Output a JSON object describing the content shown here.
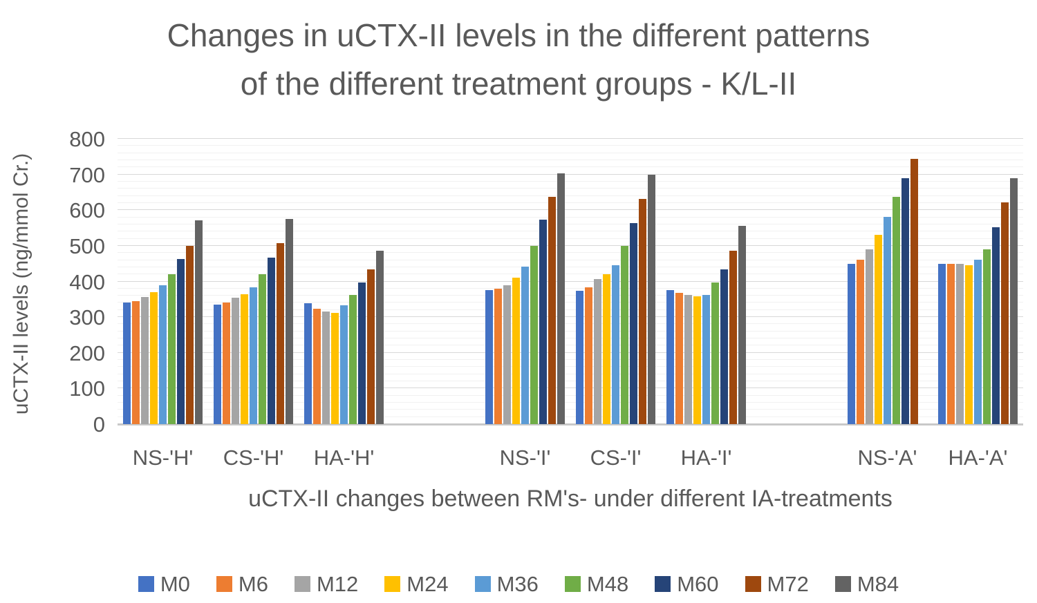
{
  "title_lines": {
    "line1": "Changes in uCTX-II levels in the different patterns",
    "line2": "of the different treatment groups - K/L-II"
  },
  "chart_data": {
    "type": "bar",
    "title": "Changes in uCTX-II levels in the different patterns of the different treatment groups - K/L-II",
    "xlabel": "uCTX-II changes between RM's- under different IA-treatments",
    "ylabel": "uCTX-II levels (ng/mmol Cr.)",
    "ylim": [
      0,
      800
    ],
    "yticks": [
      800,
      700,
      600,
      500,
      400,
      300,
      200,
      100,
      0
    ],
    "minor_unit": 20,
    "grid": "major and minor horizontal gridlines",
    "legend_position": "bottom",
    "categories": [
      "NS-'H'",
      "CS-'H'",
      "HA-'H'",
      "",
      "NS-'I'",
      "CS-'I'",
      "HA-'I'",
      "",
      "NS-'A'",
      "HA-'A'"
    ],
    "series": [
      {
        "name": "M0",
        "color": "#4472C4",
        "values": [
          341,
          335,
          339,
          null,
          376,
          374,
          375,
          null,
          450,
          450
        ]
      },
      {
        "name": "M6",
        "color": "#ED7D31",
        "values": [
          344,
          341,
          323,
          null,
          380,
          384,
          368,
          null,
          461,
          450
        ]
      },
      {
        "name": "M12",
        "color": "#A5A5A5",
        "values": [
          357,
          355,
          315,
          null,
          390,
          406,
          363,
          null,
          491,
          449
        ]
      },
      {
        "name": "M24",
        "color": "#FFC000",
        "values": [
          370,
          364,
          312,
          null,
          410,
          421,
          359,
          null,
          530,
          445
        ]
      },
      {
        "name": "M36",
        "color": "#5B9BD5",
        "values": [
          390,
          384,
          334,
          null,
          442,
          446,
          363,
          null,
          581,
          462
        ]
      },
      {
        "name": "M48",
        "color": "#70AD47",
        "values": [
          421,
          421,
          363,
          null,
          499,
          499,
          397,
          null,
          637,
          491
        ]
      },
      {
        "name": "M60",
        "color": "#264478",
        "values": [
          463,
          466,
          397,
          null,
          573,
          564,
          433,
          null,
          690,
          552
        ]
      },
      {
        "name": "M72",
        "color": "#9E480E",
        "values": [
          500,
          507,
          434,
          null,
          637,
          632,
          487,
          null,
          744,
          621
        ]
      },
      {
        "name": "M84",
        "color": "#636363",
        "values": [
          572,
          575,
          487,
          null,
          703,
          700,
          555,
          null,
          null,
          690
        ]
      }
    ],
    "axis_text_color": "#595959",
    "major_gridline_color": "#d8d8d8",
    "minor_gridline_color": "#f1f1f1",
    "axis_line_color": "#c8c8c8"
  }
}
